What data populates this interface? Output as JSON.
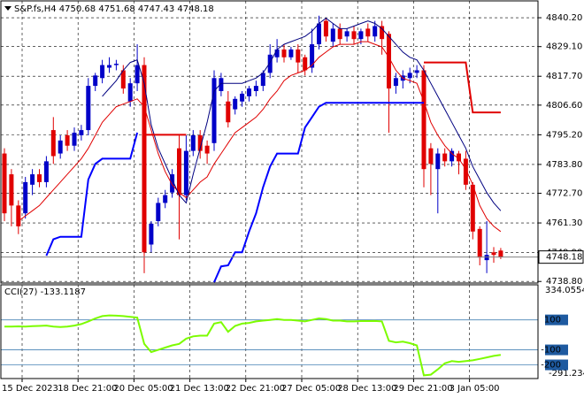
{
  "chart_data": [
    {
      "type": "candlestick",
      "title": "S&P.fs,H4",
      "x": [
        "15 Dec 2023",
        null,
        null,
        null,
        null,
        null,
        null,
        null,
        "18 Dec 21:00",
        null,
        null,
        null,
        null,
        null,
        null,
        null,
        "20 Dec 05:00",
        null,
        null,
        null,
        null,
        null,
        null,
        null,
        "21 Dec 13:00",
        null,
        null,
        null,
        null,
        null,
        null,
        null,
        "22 Dec 21:00",
        null,
        null,
        null,
        null,
        null,
        null,
        null,
        "27 Dec 05:00",
        null,
        null,
        null,
        null,
        null,
        null,
        null,
        "28 Dec 13:00",
        null,
        null,
        null,
        null,
        null,
        null,
        null,
        "29 Dec 21:00",
        null,
        null,
        null,
        null,
        null,
        null,
        null,
        "3 Jan 05:00",
        null,
        null,
        null,
        null,
        null,
        null,
        null
      ],
      "open": [
        4788,
        4780,
        4768,
        4765,
        4776,
        4780,
        4777,
        4797,
        4788,
        4795,
        4791,
        4795,
        4797,
        4814,
        4817,
        4821,
        4822,
        4820,
        4808,
        4815,
        4822,
        4753,
        4762,
        4769,
        4773,
        4790,
        4772,
        4789,
        4795,
        4791,
        4792,
        4812,
        4808,
        4805,
        4808,
        4810,
        4812,
        4814,
        4819,
        4825,
        4828,
        4825,
        4828,
        4825,
        4821,
        4830,
        4839,
        4831,
        4836,
        4833,
        4835,
        4832,
        4836,
        4833,
        4837,
        4834,
        4814,
        4816,
        4817,
        4819,
        4820,
        4790,
        4782,
        4788,
        4785,
        4788,
        4786,
        4776,
        4759,
        4747,
        4750,
        4750.68
      ],
      "high": [
        4790,
        4782,
        4770,
        4779,
        4782,
        4782,
        4787,
        4802,
        4795,
        4797,
        4798,
        4799,
        4817,
        4819,
        4824,
        4825,
        4824,
        4822,
        4817,
        4830,
        4825,
        4762,
        4771,
        4774,
        4782,
        4795,
        4795,
        4797,
        4797,
        4793,
        4820,
        4819,
        4812,
        4810,
        4812,
        4814,
        4816,
        4820,
        4830,
        4832,
        4830,
        4829,
        4830,
        4826,
        4836,
        4841,
        4840,
        4838,
        4838,
        4836,
        4837,
        4836,
        4838,
        4839,
        4839,
        4835,
        4819,
        4820,
        4821,
        4822,
        4822,
        4792,
        4790,
        4790,
        4790,
        4789,
        4789,
        4777,
        4760,
        4762,
        4752,
        4751.68
      ],
      "low": [
        4762,
        4760,
        4757,
        4763,
        4772,
        4775,
        4775,
        4784,
        4786,
        4789,
        4789,
        4793,
        4795,
        4812,
        4815,
        4819,
        4820,
        4811,
        4806,
        4812,
        4742,
        4750,
        4760,
        4767,
        4771,
        4755,
        4770,
        4787,
        4786,
        4784,
        4789,
        4810,
        4798,
        4803,
        4806,
        4808,
        4810,
        4812,
        4817,
        4823,
        4823,
        4824,
        4819,
        4818,
        4819,
        4828,
        4831,
        4829,
        4830,
        4831,
        4830,
        4830,
        4831,
        4831,
        4826,
        4796,
        4811,
        4813,
        4815,
        4817,
        4775,
        4772,
        4765,
        4783,
        4783,
        4780,
        4774,
        4755,
        4745,
        4742,
        4746,
        4747.43
      ],
      "close": [
        4765,
        4768,
        4760,
        4777,
        4780,
        4777,
        4785,
        4787,
        4793,
        4791,
        4796,
        4797,
        4814,
        4818,
        4822,
        4822,
        4822.5,
        4813,
        4815,
        4822,
        4750,
        4761,
        4769,
        4772,
        4780,
        4772,
        4789,
        4795,
        4789,
        4788,
        4817,
        4817,
        4800,
        4809,
        4811,
        4813,
        4814,
        4819,
        4826,
        4828,
        4825,
        4828,
        4823,
        4820,
        4830,
        4838,
        4833,
        4836,
        4832,
        4835,
        4832,
        4835,
        4833,
        4837,
        4832,
        4813,
        4817,
        4818,
        4819,
        4820,
        4782,
        4784,
        4788,
        4785,
        4789,
        4785,
        4776,
        4758,
        4748,
        4749,
        4749,
        4748.18
      ],
      "up_color": "#0000c8",
      "down_color": "#e00000",
      "series": [
        {
          "color": "#e00000",
          "line_width": 1,
          "values": [
            null,
            null,
            4762,
            4764,
            4766,
            4768,
            4771,
            4774,
            4777,
            4780,
            4783,
            4786,
            4790,
            4795,
            4800,
            4803,
            4806,
            4807,
            4808,
            4809,
            4806,
            4797,
            4788,
            4781,
            4776,
            4773,
            4771,
            4774,
            4777,
            4779,
            4784,
            4788,
            4792,
            4796,
            4798,
            4800,
            4802,
            4805,
            4809,
            4812,
            4816,
            4818,
            4819,
            4820,
            4822,
            4825,
            4827,
            4829,
            4830,
            4830,
            4830,
            4831,
            4831,
            4830,
            4829,
            4825,
            4820,
            4817,
            4816,
            4815,
            4808,
            4800,
            4795,
            4791,
            4788,
            4786,
            4782,
            4776,
            4768,
            4763,
            4760,
            4758
          ]
        },
        {
          "color": "#000080",
          "line_width": 1,
          "values": [
            null,
            null,
            null,
            null,
            null,
            null,
            null,
            null,
            null,
            null,
            null,
            null,
            null,
            null,
            4810,
            4813,
            4816,
            4820,
            4823,
            4824,
            4815,
            4799,
            4790,
            4784,
            4778,
            4772,
            4769,
            4780,
            4790,
            4800,
            4812,
            4815,
            4815,
            4815,
            4815,
            4816,
            4817,
            4819,
            4823,
            4828,
            4830,
            4831,
            4832,
            4833,
            4835,
            4838,
            4840,
            4838,
            4836,
            4836,
            4837,
            4838,
            4839,
            4838,
            4836,
            4833,
            4830,
            4827,
            4825,
            4824,
            4820,
            4815,
            4810,
            4805,
            4800,
            4795,
            4790,
            4783,
            4778,
            4773,
            4769,
            4766
          ]
        },
        {
          "color": "#0000ff",
          "line_width": 2,
          "values": [
            null,
            null,
            null,
            null,
            null,
            null,
            4748.7,
            4755,
            4756,
            4756,
            4756,
            4756,
            4778,
            4784,
            4786,
            4786,
            4786,
            4786,
            4786,
            4796,
            null,
            null,
            null,
            null,
            null,
            null,
            null,
            null,
            null,
            null,
            4738.5,
            4744.6,
            4745,
            4750,
            4750,
            4758,
            4765,
            4775,
            4783,
            4788,
            4788,
            4788,
            4788,
            4798,
            4802,
            4806,
            4807.5,
            4807.5,
            4807.5,
            4807.5,
            4807.5,
            4807.5,
            4807.5,
            4807.5,
            4807.5,
            4807.5,
            4807.5,
            4807.5,
            4807.5,
            4807.5,
            4807.5,
            null,
            null,
            null,
            null,
            null,
            null,
            null,
            null,
            null,
            null,
            null
          ]
        },
        {
          "color": "#e00000",
          "line_width": 2,
          "values": [
            null,
            null,
            null,
            null,
            null,
            null,
            null,
            null,
            null,
            null,
            null,
            null,
            null,
            null,
            null,
            null,
            null,
            null,
            null,
            null,
            4795.2,
            4795.2,
            4795.2,
            4795.2,
            4795.2,
            4795.2,
            4795.2,
            null,
            null,
            null,
            null,
            null,
            null,
            null,
            null,
            null,
            null,
            null,
            null,
            null,
            null,
            null,
            null,
            null,
            null,
            null,
            null,
            null,
            null,
            null,
            null,
            null,
            null,
            null,
            null,
            null,
            null,
            null,
            null,
            null,
            4823,
            4823,
            4823,
            4823,
            4823,
            4823,
            4823,
            4803.8,
            4803.8,
            4803.8,
            4803.8,
            4803.8
          ]
        }
      ],
      "ylim": [
        4738.2,
        4846.0
      ],
      "yticks": [
        {
          "value": 4840.2,
          "label": "4840.20"
        },
        {
          "value": 4829.1,
          "label": "4829.10"
        },
        {
          "value": 4817.7,
          "label": "4817.70"
        },
        {
          "value": 4806.6,
          "label": "4806.60"
        },
        {
          "value": 4795.2,
          "label": "4795.20"
        },
        {
          "value": 4783.8,
          "label": "4783.80"
        },
        {
          "value": 4772.7,
          "label": "4772.70"
        },
        {
          "value": 4761.3,
          "label": "4761.30"
        },
        {
          "value": 4749.9,
          "label": "4749.90"
        },
        {
          "value": 4738.8,
          "label": "4738.80"
        }
      ],
      "grid": true,
      "last_price_line": true
    },
    {
      "type": "line",
      "title": "CCI(27)",
      "series": [
        {
          "color": "#7cfc00",
          "line_width": 2,
          "values": [
            55,
            55,
            57,
            55,
            58,
            60,
            62,
            55,
            52,
            55,
            62,
            72,
            90,
            110,
            125,
            130,
            128,
            125,
            120,
            115,
            -60,
            -115,
            -100,
            -85,
            -70,
            -60,
            -25,
            -10,
            -5,
            -5,
            75,
            85,
            20,
            60,
            75,
            80,
            90,
            95,
            100,
            105,
            100,
            100,
            95,
            90,
            100,
            110,
            105,
            95,
            95,
            90,
            90,
            92,
            92,
            93,
            90,
            -40,
            -50,
            -45,
            -55,
            -70,
            -270,
            -265,
            -230,
            -190,
            -175,
            -180,
            -175,
            -170,
            -160,
            -150,
            -140,
            -133.1187
          ]
        }
      ],
      "ylim": [
        -291.2349,
        334.0554
      ],
      "yticks": [
        100,
        -100,
        -200
      ]
    }
  ]
}
